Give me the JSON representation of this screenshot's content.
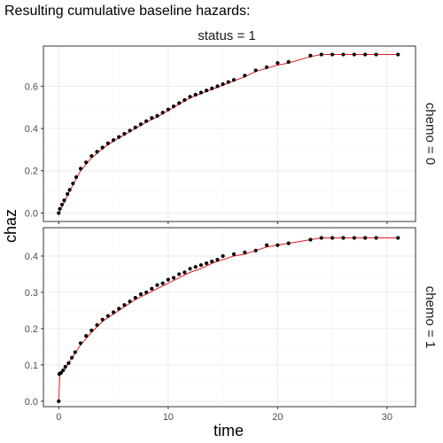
{
  "chart_data": {
    "type": "scatter",
    "title": "Resulting cumulative baseline hazards:",
    "column_strip": "status = 1",
    "xlabel": "time",
    "ylabel": "chaz",
    "xlim": [
      -1.4,
      32.6
    ],
    "x_ticks": [
      0,
      10,
      20,
      30
    ],
    "grid": true,
    "colors": {
      "points": "#000000",
      "fit_line": "#e41a1c"
    },
    "panels": [
      {
        "strip": "chemo = 0",
        "ylim": [
          -0.04,
          0.79
        ],
        "y_ticks": [
          0.0,
          0.2,
          0.4,
          0.6
        ],
        "series": [
          {
            "type": "points",
            "x": [
              0.0,
              0.1,
              0.3,
              0.5,
              0.8,
              1.0,
              1.3,
              1.6,
              2.0,
              2.5,
              3.0,
              3.5,
              4.0,
              4.5,
              5.0,
              5.5,
              6.0,
              6.5,
              7.0,
              7.5,
              8.0,
              8.5,
              9.0,
              9.5,
              10.0,
              10.5,
              11.0,
              11.5,
              12.0,
              12.5,
              13.0,
              13.5,
              14.0,
              14.5,
              15.0,
              15.5,
              16.0,
              17.0,
              18.0,
              19.0,
              20.0,
              21.0,
              23.0,
              24.0,
              25.0,
              26.0,
              27.0,
              28.0,
              29.0,
              31.0
            ],
            "y": [
              0.0,
              0.02,
              0.04,
              0.06,
              0.09,
              0.11,
              0.14,
              0.17,
              0.21,
              0.24,
              0.27,
              0.29,
              0.31,
              0.33,
              0.345,
              0.36,
              0.375,
              0.39,
              0.405,
              0.42,
              0.435,
              0.45,
              0.46,
              0.475,
              0.49,
              0.505,
              0.52,
              0.535,
              0.55,
              0.56,
              0.57,
              0.58,
              0.59,
              0.6,
              0.61,
              0.62,
              0.63,
              0.65,
              0.675,
              0.69,
              0.71,
              0.715,
              0.745,
              0.75,
              0.75,
              0.75,
              0.75,
              0.75,
              0.75,
              0.75
            ]
          },
          {
            "type": "line",
            "x": [
              0.0,
              0.5,
              1.0,
              2.0,
              3.0,
              4.0,
              5.0,
              6.0,
              7.0,
              8.0,
              9.0,
              10.0,
              11.0,
              12.0,
              13.0,
              14.0,
              15.0,
              16.0,
              17.0,
              18.0,
              19.0,
              20.0,
              21.0,
              22.0,
              23.0,
              24.0,
              25.0,
              26.0,
              28.0,
              30.0,
              31.0
            ],
            "y": [
              0.0,
              0.05,
              0.105,
              0.2,
              0.26,
              0.305,
              0.34,
              0.37,
              0.4,
              0.43,
              0.455,
              0.485,
              0.515,
              0.545,
              0.565,
              0.585,
              0.605,
              0.625,
              0.645,
              0.67,
              0.685,
              0.7,
              0.71,
              0.725,
              0.74,
              0.75,
              0.75,
              0.75,
              0.75,
              0.75,
              0.75
            ]
          }
        ]
      },
      {
        "strip": "chemo = 1",
        "ylim": [
          -0.015,
          0.478
        ],
        "y_ticks": [
          0.0,
          0.1,
          0.2,
          0.3,
          0.4
        ],
        "series": [
          {
            "type": "points",
            "x": [
              0.0,
              0.05,
              0.2,
              0.4,
              0.6,
              0.9,
              1.2,
              1.5,
              2.0,
              2.5,
              3.0,
              3.5,
              4.0,
              4.5,
              5.0,
              5.5,
              6.0,
              6.5,
              7.0,
              7.5,
              8.0,
              8.5,
              9.0,
              9.5,
              10.0,
              10.5,
              11.0,
              11.5,
              12.0,
              12.5,
              13.0,
              13.5,
              14.0,
              14.5,
              15.0,
              16.0,
              17.0,
              18.0,
              19.0,
              20.0,
              21.0,
              23.0,
              24.0,
              25.0,
              26.0,
              27.0,
              28.0,
              29.0,
              31.0
            ],
            "y": [
              0.0,
              0.075,
              0.078,
              0.085,
              0.095,
              0.105,
              0.12,
              0.135,
              0.16,
              0.18,
              0.195,
              0.21,
              0.225,
              0.235,
              0.245,
              0.255,
              0.265,
              0.275,
              0.285,
              0.295,
              0.3,
              0.31,
              0.32,
              0.325,
              0.335,
              0.34,
              0.35,
              0.355,
              0.365,
              0.37,
              0.375,
              0.38,
              0.385,
              0.39,
              0.4,
              0.405,
              0.41,
              0.415,
              0.43,
              0.43,
              0.435,
              0.445,
              0.45,
              0.45,
              0.45,
              0.45,
              0.45,
              0.45,
              0.45
            ]
          },
          {
            "type": "line",
            "x": [
              0.0,
              0.1,
              0.5,
              1.0,
              2.0,
              3.0,
              4.0,
              5.0,
              6.0,
              7.0,
              8.0,
              9.0,
              10.0,
              11.0,
              12.0,
              13.0,
              14.0,
              15.0,
              16.0,
              17.0,
              18.0,
              19.0,
              20.0,
              21.0,
              22.0,
              23.0,
              24.0,
              25.0,
              27.0,
              29.0,
              31.0
            ],
            "y": [
              0.0,
              0.075,
              0.085,
              0.11,
              0.155,
              0.19,
              0.22,
              0.24,
              0.26,
              0.28,
              0.295,
              0.31,
              0.325,
              0.34,
              0.355,
              0.365,
              0.38,
              0.39,
              0.4,
              0.405,
              0.415,
              0.425,
              0.43,
              0.435,
              0.44,
              0.445,
              0.45,
              0.45,
              0.45,
              0.45,
              0.45
            ]
          }
        ]
      }
    ]
  }
}
